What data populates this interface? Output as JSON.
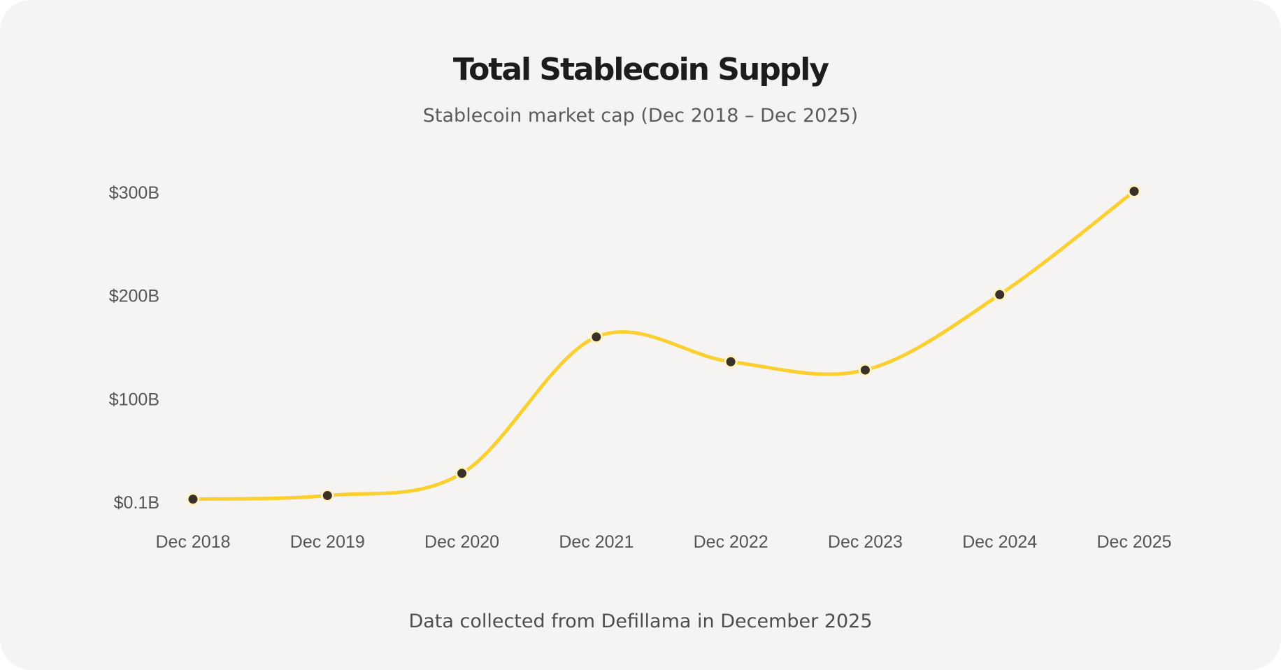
{
  "title": "Total Stablecoin Supply",
  "subtitle": "Stablecoin market cap (Dec 2018 – Dec 2025)",
  "footer": "Data collected from Defillama in December 2025",
  "colors": {
    "background": "#f5f4f2",
    "line": "#fbcf2d",
    "marker": "#3b3128",
    "marker_outline": "#fff3c4"
  },
  "chart_data": {
    "type": "line",
    "x": [
      "Dec 2018",
      "Dec 2019",
      "Dec 2020",
      "Dec 2021",
      "Dec 2022",
      "Dec 2023",
      "Dec 2024",
      "Dec 2025"
    ],
    "series": [
      {
        "values": [
          3,
          6.5,
          28,
          160,
          136,
          128,
          201,
          301
        ]
      }
    ],
    "yticks": [
      {
        "value": 0.1,
        "label": "$0.1B"
      },
      {
        "value": 100,
        "label": "$100B"
      },
      {
        "value": 200,
        "label": "$200B"
      },
      {
        "value": 300,
        "label": "$300B"
      }
    ],
    "ylim": [
      0.1,
      300
    ],
    "grid": false,
    "legend": "none",
    "smooth": true
  }
}
